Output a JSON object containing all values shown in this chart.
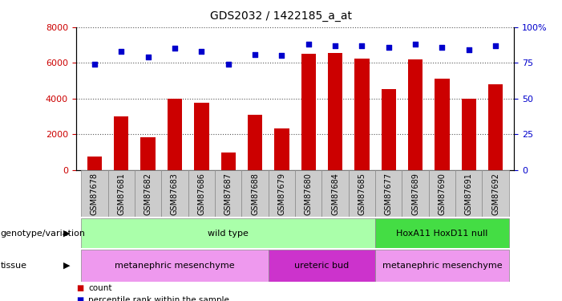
{
  "title": "GDS2032 / 1422185_a_at",
  "samples": [
    "GSM87678",
    "GSM87681",
    "GSM87682",
    "GSM87683",
    "GSM87686",
    "GSM87687",
    "GSM87688",
    "GSM87679",
    "GSM87680",
    "GSM87684",
    "GSM87685",
    "GSM87677",
    "GSM87689",
    "GSM87690",
    "GSM87691",
    "GSM87692"
  ],
  "counts": [
    750,
    3000,
    1850,
    4000,
    3750,
    1000,
    3100,
    2350,
    6500,
    6550,
    6250,
    4550,
    6200,
    5100,
    4000,
    4800
  ],
  "percentiles": [
    74,
    83,
    79,
    85,
    83,
    74,
    81,
    80,
    88,
    87,
    87,
    86,
    88,
    86,
    84,
    87
  ],
  "bar_color": "#cc0000",
  "dot_color": "#0000cc",
  "ylim_left": [
    0,
    8000
  ],
  "ylim_right": [
    0,
    100
  ],
  "yticks_left": [
    0,
    2000,
    4000,
    6000,
    8000
  ],
  "yticks_right": [
    0,
    25,
    50,
    75,
    100
  ],
  "yticklabels_right": [
    "0",
    "25",
    "50",
    "75",
    "100%"
  ],
  "background_color": "#ffffff",
  "plot_bg_color": "#ffffff",
  "genotype_groups": [
    {
      "label": "wild type",
      "start": 0,
      "end": 10,
      "color": "#aaffaa"
    },
    {
      "label": "HoxA11 HoxD11 null",
      "start": 11,
      "end": 15,
      "color": "#44dd44"
    }
  ],
  "tissue_groups": [
    {
      "label": "metanephric mesenchyme",
      "start": 0,
      "end": 6,
      "color": "#ee99ee"
    },
    {
      "label": "ureteric bud",
      "start": 7,
      "end": 10,
      "color": "#cc33cc"
    },
    {
      "label": "metanephric mesenchyme",
      "start": 11,
      "end": 15,
      "color": "#ee99ee"
    }
  ],
  "legend_items": [
    {
      "label": "count",
      "color": "#cc0000"
    },
    {
      "label": "percentile rank within the sample",
      "color": "#0000cc"
    }
  ],
  "row_labels": [
    "genotype/variation",
    "tissue"
  ],
  "dotted_line_color": "#555555",
  "tick_label_color_left": "#cc0000",
  "tick_label_color_right": "#0000cc",
  "sample_box_color": "#cccccc",
  "arrow_char": "▶"
}
